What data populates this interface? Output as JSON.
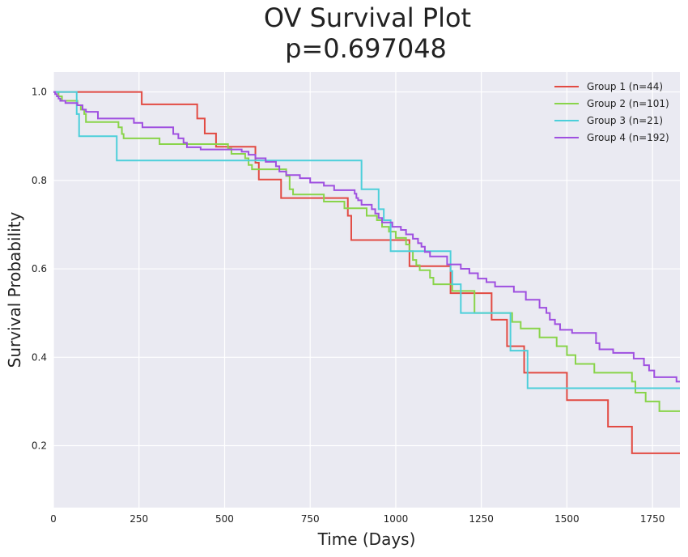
{
  "chart_data": {
    "type": "line",
    "title": [
      "OV Survival Plot",
      "p=0.697048"
    ],
    "xlabel": "Time (Days)",
    "ylabel": "Survival Probability",
    "xlim": [
      0,
      1830
    ],
    "ylim": [
      0.06,
      1.045
    ],
    "xticks": [
      0,
      250,
      500,
      750,
      1000,
      1250,
      1500,
      1750
    ],
    "yticks": [
      0.2,
      0.4,
      0.6,
      0.8,
      1.0
    ],
    "xtick_labels": [
      "0",
      "250",
      "500",
      "750",
      "1000",
      "1250",
      "1500",
      "1750"
    ],
    "ytick_labels": [
      "0.2",
      "0.4",
      "0.6",
      "0.8",
      "1.0"
    ],
    "grid": true,
    "legend_position": "top-right",
    "background": "#eaeaf2",
    "series": [
      {
        "name": "Group 1 (n=44)",
        "color": "#e24a42",
        "step_points": [
          [
            0,
            1.0
          ],
          [
            258,
            0.972
          ],
          [
            420,
            0.94
          ],
          [
            442,
            0.906
          ],
          [
            475,
            0.876
          ],
          [
            590,
            0.84
          ],
          [
            600,
            0.802
          ],
          [
            665,
            0.76
          ],
          [
            860,
            0.72
          ],
          [
            870,
            0.665
          ],
          [
            990,
            0.665
          ],
          [
            1040,
            0.606
          ],
          [
            1160,
            0.545
          ],
          [
            1280,
            0.485
          ],
          [
            1325,
            0.425
          ],
          [
            1375,
            0.365
          ],
          [
            1500,
            0.303
          ],
          [
            1620,
            0.243
          ],
          [
            1690,
            0.183
          ],
          [
            1830,
            0.183
          ]
        ]
      },
      {
        "name": "Group 2 (n=101)",
        "color": "#89d44a",
        "step_points": [
          [
            0,
            1.0
          ],
          [
            15,
            0.99
          ],
          [
            25,
            0.98
          ],
          [
            40,
            0.98
          ],
          [
            70,
            0.97
          ],
          [
            80,
            0.96
          ],
          [
            90,
            0.95
          ],
          [
            95,
            0.932
          ],
          [
            190,
            0.92
          ],
          [
            200,
            0.905
          ],
          [
            205,
            0.895
          ],
          [
            310,
            0.882
          ],
          [
            510,
            0.872
          ],
          [
            520,
            0.86
          ],
          [
            560,
            0.85
          ],
          [
            570,
            0.835
          ],
          [
            580,
            0.825
          ],
          [
            680,
            0.81
          ],
          [
            690,
            0.78
          ],
          [
            700,
            0.768
          ],
          [
            790,
            0.752
          ],
          [
            850,
            0.737
          ],
          [
            915,
            0.72
          ],
          [
            945,
            0.71
          ],
          [
            960,
            0.695
          ],
          [
            980,
            0.684
          ],
          [
            1000,
            0.67
          ],
          [
            1030,
            0.655
          ],
          [
            1040,
            0.64
          ],
          [
            1050,
            0.62
          ],
          [
            1060,
            0.608
          ],
          [
            1070,
            0.597
          ],
          [
            1100,
            0.58
          ],
          [
            1110,
            0.565
          ],
          [
            1165,
            0.55
          ],
          [
            1230,
            0.5
          ],
          [
            1340,
            0.48
          ],
          [
            1365,
            0.465
          ],
          [
            1420,
            0.445
          ],
          [
            1470,
            0.425
          ],
          [
            1500,
            0.405
          ],
          [
            1525,
            0.385
          ],
          [
            1580,
            0.365
          ],
          [
            1690,
            0.345
          ],
          [
            1700,
            0.32
          ],
          [
            1730,
            0.3
          ],
          [
            1770,
            0.278
          ],
          [
            1830,
            0.278
          ]
        ]
      },
      {
        "name": "Group 3 (n=21)",
        "color": "#4ccfda",
        "step_points": [
          [
            0,
            1.0
          ],
          [
            68,
            0.95
          ],
          [
            75,
            0.9
          ],
          [
            185,
            0.845
          ],
          [
            895,
            0.845
          ],
          [
            900,
            0.78
          ],
          [
            950,
            0.735
          ],
          [
            965,
            0.71
          ],
          [
            985,
            0.64
          ],
          [
            1160,
            0.595
          ],
          [
            1165,
            0.565
          ],
          [
            1190,
            0.5
          ],
          [
            1335,
            0.415
          ],
          [
            1385,
            0.33
          ],
          [
            1830,
            0.33
          ]
        ]
      },
      {
        "name": "Group 4 (n=192)",
        "color": "#9f50e0",
        "step_points": [
          [
            0,
            1.0
          ],
          [
            5,
            0.995
          ],
          [
            10,
            0.99
          ],
          [
            15,
            0.985
          ],
          [
            20,
            0.98
          ],
          [
            35,
            0.975
          ],
          [
            70,
            0.97
          ],
          [
            85,
            0.96
          ],
          [
            95,
            0.955
          ],
          [
            130,
            0.94
          ],
          [
            235,
            0.93
          ],
          [
            260,
            0.92
          ],
          [
            350,
            0.905
          ],
          [
            365,
            0.895
          ],
          [
            380,
            0.885
          ],
          [
            390,
            0.875
          ],
          [
            430,
            0.87
          ],
          [
            550,
            0.865
          ],
          [
            570,
            0.858
          ],
          [
            590,
            0.85
          ],
          [
            620,
            0.842
          ],
          [
            650,
            0.832
          ],
          [
            660,
            0.82
          ],
          [
            680,
            0.812
          ],
          [
            720,
            0.805
          ],
          [
            750,
            0.795
          ],
          [
            790,
            0.788
          ],
          [
            820,
            0.778
          ],
          [
            880,
            0.77
          ],
          [
            885,
            0.76
          ],
          [
            890,
            0.755
          ],
          [
            900,
            0.745
          ],
          [
            930,
            0.735
          ],
          [
            940,
            0.725
          ],
          [
            950,
            0.715
          ],
          [
            960,
            0.705
          ],
          [
            990,
            0.695
          ],
          [
            1015,
            0.688
          ],
          [
            1030,
            0.678
          ],
          [
            1050,
            0.668
          ],
          [
            1065,
            0.658
          ],
          [
            1075,
            0.65
          ],
          [
            1085,
            0.638
          ],
          [
            1100,
            0.628
          ],
          [
            1150,
            0.61
          ],
          [
            1190,
            0.6
          ],
          [
            1215,
            0.59
          ],
          [
            1240,
            0.578
          ],
          [
            1265,
            0.57
          ],
          [
            1290,
            0.56
          ],
          [
            1345,
            0.548
          ],
          [
            1380,
            0.53
          ],
          [
            1420,
            0.512
          ],
          [
            1440,
            0.5
          ],
          [
            1450,
            0.485
          ],
          [
            1465,
            0.475
          ],
          [
            1480,
            0.462
          ],
          [
            1515,
            0.455
          ],
          [
            1585,
            0.432
          ],
          [
            1595,
            0.418
          ],
          [
            1635,
            0.41
          ],
          [
            1695,
            0.397
          ],
          [
            1725,
            0.382
          ],
          [
            1740,
            0.37
          ],
          [
            1755,
            0.355
          ],
          [
            1820,
            0.345
          ],
          [
            1830,
            0.345
          ]
        ]
      }
    ]
  }
}
